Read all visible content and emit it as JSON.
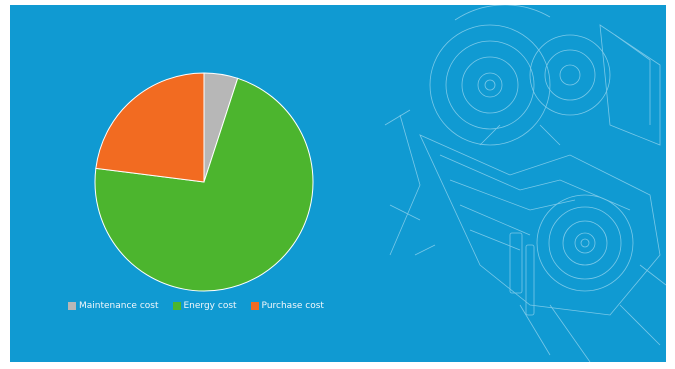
{
  "chart_data": {
    "type": "pie",
    "title": "",
    "categories": [
      "Maintenance cost",
      "Energy cost",
      "Purchase cost"
    ],
    "values": [
      5,
      72,
      23
    ],
    "colors": [
      "#b7b7b7",
      "#4cb52e",
      "#f26b21"
    ],
    "legend_position": "bottom-left",
    "start_angle_deg": 0,
    "direction": "clockwise",
    "slice_border_color": "#ffffff"
  },
  "theme": {
    "background": "#109ad2",
    "blueprint_line_color": "#cfeefa",
    "legend_text_color": "#f2f7fb"
  },
  "decoration": {
    "blueprint_icon": "engine-blueprint-drawing"
  }
}
